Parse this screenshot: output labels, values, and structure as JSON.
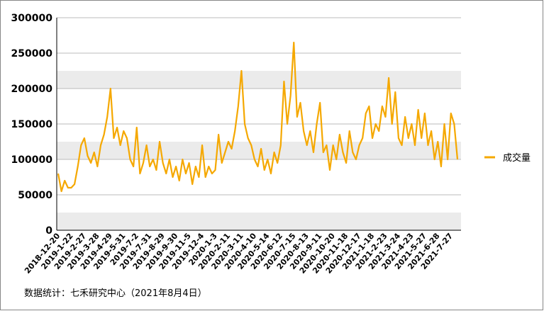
{
  "chart_data": {
    "type": "line",
    "source": "数据统计：七禾研究中心（2021年8月4日）",
    "categories": [
      "2018-12-20",
      null,
      null,
      null,
      "2019-1-22",
      null,
      null,
      null,
      "2019-2-27",
      null,
      null,
      null,
      "2019-3-28",
      null,
      null,
      null,
      "2019-4-29",
      null,
      null,
      null,
      "2019-5-31",
      null,
      null,
      null,
      "2019-7-2",
      null,
      null,
      null,
      "2019-7-31",
      null,
      null,
      null,
      "2019-8-29",
      null,
      null,
      null,
      "2019-9-30",
      null,
      null,
      null,
      "2019-11-5",
      null,
      null,
      null,
      "2019-12-4",
      null,
      null,
      null,
      "2020-1-3",
      null,
      null,
      null,
      "2020-2-11",
      null,
      null,
      null,
      "2020-3-11",
      null,
      null,
      null,
      "2020-4-10",
      null,
      null,
      null,
      "2020-5-14",
      null,
      null,
      null,
      "2020-6-12",
      null,
      null,
      null,
      "2020-7-15",
      null,
      null,
      null,
      "2020-8-13",
      null,
      null,
      null,
      "2020-9-11",
      null,
      null,
      null,
      "2020-10-20",
      null,
      null,
      null,
      "2020-11-18",
      null,
      null,
      null,
      "2020-12-17",
      null,
      null,
      null,
      "2021-1-18",
      null,
      null,
      null,
      "2021-2-23",
      null,
      null,
      null,
      "2021-3-24",
      null,
      null,
      null,
      "2021-4-23",
      null,
      null,
      null,
      "2021-5-27",
      null,
      null,
      null,
      "2021-6-28",
      null,
      null,
      null,
      "2021-7-27",
      null,
      null
    ],
    "series": [
      {
        "name": "成交量",
        "color": "#f5a800",
        "values": [
          80000,
          55000,
          70000,
          60000,
          60000,
          65000,
          90000,
          120000,
          130000,
          105000,
          95000,
          110000,
          90000,
          120000,
          135000,
          160000,
          200000,
          130000,
          145000,
          120000,
          140000,
          130000,
          100000,
          90000,
          145000,
          80000,
          95000,
          120000,
          90000,
          100000,
          85000,
          125000,
          95000,
          80000,
          100000,
          75000,
          90000,
          70000,
          100000,
          80000,
          95000,
          65000,
          90000,
          75000,
          120000,
          75000,
          90000,
          80000,
          85000,
          135000,
          95000,
          110000,
          125000,
          115000,
          140000,
          175000,
          225000,
          150000,
          130000,
          120000,
          100000,
          90000,
          115000,
          85000,
          100000,
          80000,
          110000,
          95000,
          120000,
          210000,
          150000,
          190000,
          265000,
          160000,
          180000,
          140000,
          120000,
          140000,
          110000,
          150000,
          180000,
          110000,
          120000,
          85000,
          120000,
          100000,
          135000,
          110000,
          95000,
          140000,
          110000,
          100000,
          120000,
          130000,
          165000,
          175000,
          130000,
          150000,
          140000,
          175000,
          160000,
          215000,
          150000,
          195000,
          130000,
          120000,
          160000,
          130000,
          150000,
          120000,
          170000,
          130000,
          165000,
          120000,
          140000,
          100000,
          125000,
          90000,
          150000,
          100000,
          165000,
          150000,
          100000
        ]
      }
    ],
    "ylim": [
      0,
      300000
    ],
    "yticks": [
      0,
      50000,
      100000,
      150000,
      200000,
      250000,
      300000
    ],
    "grid": true,
    "legend": "right"
  }
}
